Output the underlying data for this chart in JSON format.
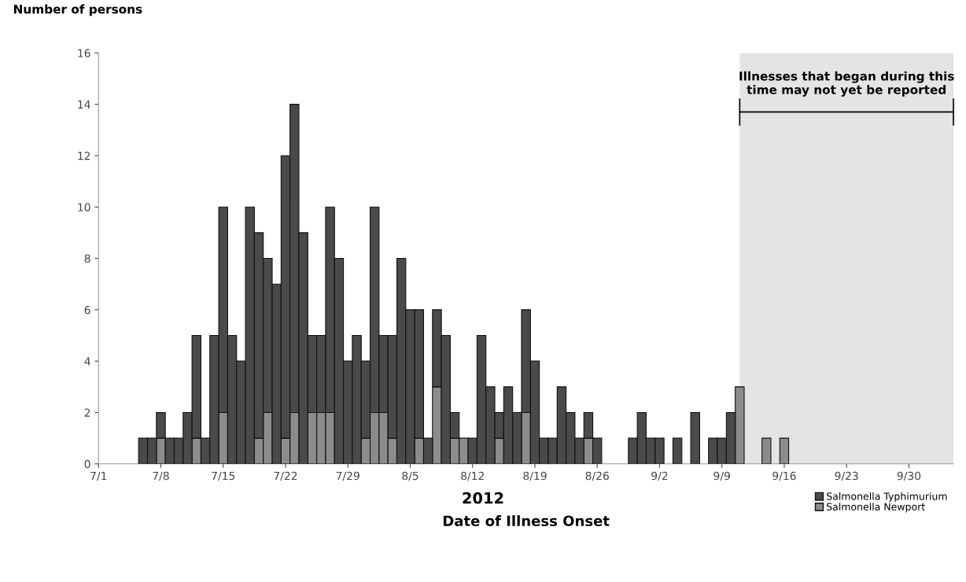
{
  "chart_data": {
    "type": "bar",
    "stacked": true,
    "ylabel": "Number of persons",
    "xlabel": "Date of Illness Onset",
    "annotations": [
      "2012"
    ],
    "x": [
      "2012-07-06",
      "2012-07-07",
      "2012-07-08",
      "2012-07-09",
      "2012-07-10",
      "2012-07-11",
      "2012-07-12",
      "2012-07-13",
      "2012-07-14",
      "2012-07-15",
      "2012-07-16",
      "2012-07-17",
      "2012-07-18",
      "2012-07-19",
      "2012-07-20",
      "2012-07-21",
      "2012-07-22",
      "2012-07-23",
      "2012-07-24",
      "2012-07-25",
      "2012-07-26",
      "2012-07-27",
      "2012-07-28",
      "2012-07-29",
      "2012-07-30",
      "2012-07-31",
      "2012-08-01",
      "2012-08-02",
      "2012-08-03",
      "2012-08-04",
      "2012-08-05",
      "2012-08-06",
      "2012-08-07",
      "2012-08-08",
      "2012-08-09",
      "2012-08-10",
      "2012-08-11",
      "2012-08-12",
      "2012-08-13",
      "2012-08-14",
      "2012-08-15",
      "2012-08-16",
      "2012-08-17",
      "2012-08-18",
      "2012-08-19",
      "2012-08-20",
      "2012-08-21",
      "2012-08-22",
      "2012-08-23",
      "2012-08-24",
      "2012-08-25",
      "2012-08-26",
      "2012-08-27",
      "2012-08-28",
      "2012-08-29",
      "2012-08-30",
      "2012-08-31",
      "2012-09-01",
      "2012-09-02",
      "2012-09-03",
      "2012-09-04",
      "2012-09-05",
      "2012-09-06",
      "2012-09-07",
      "2012-09-08",
      "2012-09-09",
      "2012-09-10",
      "2012-09-11",
      "2012-09-12",
      "2012-09-13",
      "2012-09-14",
      "2012-09-15",
      "2012-09-16"
    ],
    "series": [
      {
        "name": "Salmonella Newport",
        "color": "#8c8c8c",
        "values": [
          null,
          null,
          1,
          null,
          null,
          null,
          1,
          null,
          null,
          2,
          null,
          null,
          null,
          1,
          2,
          null,
          1,
          2,
          null,
          2,
          2,
          2,
          null,
          null,
          null,
          1,
          2,
          2,
          1,
          null,
          null,
          1,
          null,
          3,
          null,
          1,
          1,
          null,
          null,
          null,
          1,
          null,
          null,
          2,
          null,
          null,
          null,
          null,
          null,
          null,
          1,
          null,
          null,
          null,
          null,
          null,
          null,
          null,
          null,
          null,
          null,
          null,
          null,
          null,
          null,
          null,
          null,
          3,
          null,
          null,
          1,
          null,
          1
        ]
      },
      {
        "name": "Salmonella Typhimurium",
        "color": "#4a4a4a",
        "values": [
          1,
          1,
          1,
          1,
          1,
          2,
          4,
          1,
          5,
          8,
          5,
          4,
          10,
          8,
          6,
          7,
          11,
          12,
          9,
          3,
          3,
          8,
          8,
          4,
          5,
          3,
          8,
          3,
          4,
          8,
          6,
          5,
          1,
          3,
          5,
          1,
          null,
          1,
          5,
          3,
          1,
          3,
          2,
          4,
          4,
          1,
          1,
          3,
          2,
          1,
          1,
          1,
          null,
          null,
          null,
          1,
          2,
          1,
          1,
          null,
          1,
          null,
          2,
          null,
          1,
          1,
          2,
          null,
          null,
          null,
          null,
          null,
          null
        ]
      }
    ],
    "xlim": [
      "2012-07-01",
      "2012-10-05"
    ],
    "xticks": [
      {
        "value": "2012-07-01",
        "label": "7/1"
      },
      {
        "value": "2012-07-08",
        "label": "7/8"
      },
      {
        "value": "2012-07-15",
        "label": "7/15"
      },
      {
        "value": "2012-07-22",
        "label": "7/22"
      },
      {
        "value": "2012-07-29",
        "label": "7/29"
      },
      {
        "value": "2012-08-05",
        "label": "8/5"
      },
      {
        "value": "2012-08-12",
        "label": "8/12"
      },
      {
        "value": "2012-08-19",
        "label": "8/19"
      },
      {
        "value": "2012-08-26",
        "label": "8/26"
      },
      {
        "value": "2012-09-02",
        "label": "9/2"
      },
      {
        "value": "2012-09-09",
        "label": "9/9"
      },
      {
        "value": "2012-09-16",
        "label": "9/16"
      },
      {
        "value": "2012-09-23",
        "label": "9/23"
      },
      {
        "value": "2012-09-30",
        "label": "9/30"
      }
    ],
    "ylim": [
      0,
      16
    ],
    "yticks": [
      0,
      2,
      4,
      6,
      8,
      10,
      12,
      14,
      16
    ],
    "bands": [
      {
        "axis": "x",
        "from": "2012-09-11",
        "to": "2012-10-05",
        "label": "Illnesses that began during this\ntime may not yet be reported",
        "color": "#e4e4e4"
      }
    ],
    "legend": "bottom right",
    "grid": false
  }
}
